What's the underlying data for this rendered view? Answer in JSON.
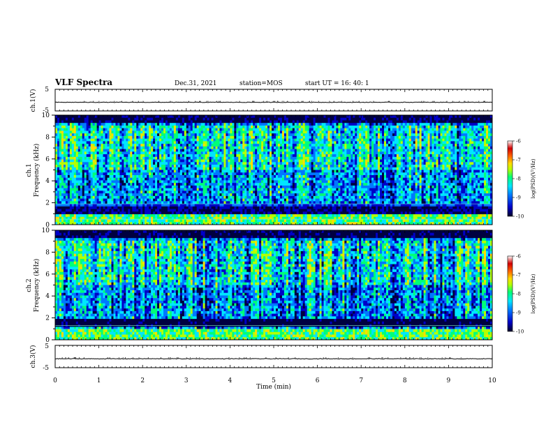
{
  "header": {
    "title": "VLF Spectra",
    "date": "Dec.31, 2021",
    "station": "station=MOS",
    "start_ut": "start UT =  16: 40: 1"
  },
  "colors": {
    "spectrogram_scale": [
      "#000040",
      "#0000c8",
      "#0078ff",
      "#00e6ff",
      "#00ff78",
      "#b4ff00",
      "#ffdc00",
      "#ff6400",
      "#d20000",
      "#ffffff"
    ],
    "trace": "#000000",
    "axis": "#000000",
    "line_artifact": "#7fffd4"
  },
  "chart_data": [
    {
      "type": "line",
      "name": "ch1-voltage",
      "ylabel": "ch.1(V)",
      "ylim": [
        -5,
        5
      ],
      "y_ticks": [
        "5",
        "-5"
      ],
      "xlim": [
        0,
        10
      ],
      "value_approx": -1
    },
    {
      "type": "heatmap",
      "name": "ch1-spectrogram",
      "ylabel_line1": "ch.1",
      "ylabel_line2": "Frequency (kHz)",
      "ylim": [
        0,
        10
      ],
      "y_ticks": [
        "0",
        "2",
        "4",
        "6",
        "8",
        "10"
      ],
      "xlim": [
        0,
        10
      ],
      "colorbar": {
        "label": "log(PSD)(V²/Hz)",
        "range": [
          -10,
          -6
        ],
        "ticks": [
          "-6",
          "-7",
          "-8",
          "-9",
          "-10"
        ]
      }
    },
    {
      "type": "heatmap",
      "name": "ch2-spectrogram",
      "ylabel_line1": "ch.2",
      "ylabel_line2": "Frequency (kHz)",
      "ylim": [
        0,
        10
      ],
      "y_ticks": [
        "0",
        "2",
        "4",
        "6",
        "8",
        "10"
      ],
      "xlim": [
        0,
        10
      ],
      "colorbar": {
        "label": "log(PSD)(V²/Hz)",
        "range": [
          -10,
          -6
        ],
        "ticks": [
          "-6",
          "-7",
          "-8",
          "-9",
          "-10"
        ]
      }
    },
    {
      "type": "line",
      "name": "ch3-voltage",
      "ylabel": "ch.3(V)",
      "ylim": [
        -5,
        5
      ],
      "y_ticks": [
        "5",
        "-5"
      ],
      "xlim": [
        0,
        10
      ],
      "value_approx": -1
    }
  ],
  "x_axis": {
    "label": "Time (min)",
    "ticks": [
      "0",
      "1",
      "2",
      "3",
      "4",
      "5",
      "6",
      "7",
      "8",
      "9",
      "10"
    ]
  }
}
